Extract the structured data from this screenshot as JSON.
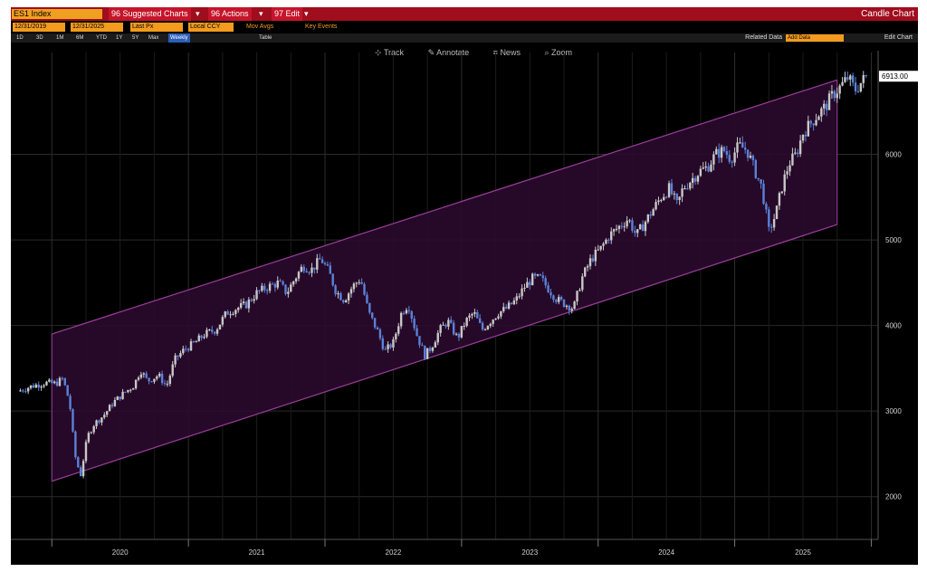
{
  "header": {
    "ticker": "ES1 Index",
    "menu_suggested": "96 Suggested Charts",
    "menu_actions": "96 Actions",
    "menu_edit": "97 Edit",
    "chart_type": "Candle Chart"
  },
  "toolbar": {
    "start_date": "12/31/2019",
    "end_date": "12/31/2025",
    "field": "Last Px",
    "currency": "Local CCY",
    "mov_avgs": "Mov Avgs",
    "key_events": "Key Events"
  },
  "ranges": {
    "items": [
      "1D",
      "3D",
      "1M",
      "6M",
      "YTD",
      "1Y",
      "5Y",
      "Max"
    ],
    "period": "Weekly",
    "table": "Table",
    "related": "Related Data",
    "add_related": "Add Data",
    "edit_chart": "Edit Chart"
  },
  "tools": {
    "track": "Track",
    "annotate": "Annotate",
    "news": "News",
    "zoom": "Zoom"
  },
  "colors": {
    "background": "#000000",
    "title_bar": "#a00d1c",
    "accent_orange": "#f29b1d",
    "channel_fill": "#2a0a2c",
    "channel_line": "#9a3e9a",
    "candle_up": "#c8c8c8",
    "candle_down": "#5a82d8"
  },
  "chart_data": {
    "type": "candlestick",
    "y_ticks": [
      2000,
      3000,
      4000,
      5000,
      6000
    ],
    "ylim": [
      1500,
      7000
    ],
    "x_ticks": [
      "2020",
      "2021",
      "2022",
      "2023",
      "2024",
      "2025"
    ],
    "last_price_label": "6913.00",
    "last_price": 6913,
    "channel": {
      "upper_start": [
        2020.0,
        3900
      ],
      "upper_end": [
        2025.75,
        6870
      ],
      "lower_start": [
        2020.0,
        2180
      ],
      "lower_end": [
        2025.75,
        5180
      ]
    },
    "series": [
      [
        2019.75,
        3230
      ],
      [
        2019.85,
        3290
      ],
      [
        2019.95,
        3330
      ],
      [
        2020.03,
        3320
      ],
      [
        2020.08,
        3380
      ],
      [
        2020.13,
        3100
      ],
      [
        2020.17,
        2480
      ],
      [
        2020.21,
        2240
      ],
      [
        2020.26,
        2700
      ],
      [
        2020.31,
        2850
      ],
      [
        2020.38,
        2950
      ],
      [
        2020.45,
        3100
      ],
      [
        2020.52,
        3200
      ],
      [
        2020.6,
        3300
      ],
      [
        2020.65,
        3480
      ],
      [
        2020.7,
        3350
      ],
      [
        2020.78,
        3420
      ],
      [
        2020.84,
        3290
      ],
      [
        2020.9,
        3600
      ],
      [
        2020.97,
        3720
      ],
      [
        2021.05,
        3800
      ],
      [
        2021.12,
        3900
      ],
      [
        2021.2,
        3950
      ],
      [
        2021.28,
        4150
      ],
      [
        2021.35,
        4200
      ],
      [
        2021.42,
        4240
      ],
      [
        2021.5,
        4380
      ],
      [
        2021.58,
        4450
      ],
      [
        2021.66,
        4500
      ],
      [
        2021.72,
        4380
      ],
      [
        2021.78,
        4550
      ],
      [
        2021.84,
        4700
      ],
      [
        2021.9,
        4650
      ],
      [
        2021.97,
        4780
      ],
      [
        2022.03,
        4620
      ],
      [
        2022.08,
        4400
      ],
      [
        2022.14,
        4300
      ],
      [
        2022.2,
        4450
      ],
      [
        2022.26,
        4550
      ],
      [
        2022.32,
        4150
      ],
      [
        2022.38,
        3950
      ],
      [
        2022.44,
        3700
      ],
      [
        2022.5,
        3800
      ],
      [
        2022.56,
        4150
      ],
      [
        2022.61,
        4250
      ],
      [
        2022.67,
        3900
      ],
      [
        2022.73,
        3650
      ],
      [
        2022.78,
        3750
      ],
      [
        2022.84,
        3950
      ],
      [
        2022.9,
        4050
      ],
      [
        2022.97,
        3850
      ],
      [
        2023.03,
        4050
      ],
      [
        2023.09,
        4150
      ],
      [
        2023.15,
        3950
      ],
      [
        2023.21,
        4050
      ],
      [
        2023.27,
        4150
      ],
      [
        2023.33,
        4200
      ],
      [
        2023.4,
        4300
      ],
      [
        2023.46,
        4450
      ],
      [
        2023.52,
        4550
      ],
      [
        2023.58,
        4550
      ],
      [
        2023.64,
        4420
      ],
      [
        2023.7,
        4300
      ],
      [
        2023.76,
        4250
      ],
      [
        2023.82,
        4200
      ],
      [
        2023.88,
        4550
      ],
      [
        2023.95,
        4780
      ],
      [
        2024.02,
        4900
      ],
      [
        2024.08,
        5050
      ],
      [
        2024.15,
        5150
      ],
      [
        2024.22,
        5250
      ],
      [
        2024.28,
        5050
      ],
      [
        2024.34,
        5200
      ],
      [
        2024.4,
        5350
      ],
      [
        2024.46,
        5500
      ],
      [
        2024.52,
        5600
      ],
      [
        2024.58,
        5400
      ],
      [
        2024.62,
        5600
      ],
      [
        2024.68,
        5700
      ],
      [
        2024.74,
        5800
      ],
      [
        2024.8,
        5850
      ],
      [
        2024.86,
        6000
      ],
      [
        2024.92,
        6050
      ],
      [
        2024.97,
        5950
      ],
      [
        2025.03,
        6100
      ],
      [
        2025.09,
        6050
      ],
      [
        2025.15,
        5800
      ],
      [
        2025.2,
        5600
      ],
      [
        2025.25,
        5100
      ],
      [
        2025.3,
        5300
      ],
      [
        2025.35,
        5650
      ],
      [
        2025.4,
        5900
      ],
      [
        2025.45,
        6000
      ],
      [
        2025.5,
        6250
      ],
      [
        2025.55,
        6350
      ],
      [
        2025.6,
        6450
      ],
      [
        2025.66,
        6550
      ],
      [
        2025.72,
        6700
      ],
      [
        2025.78,
        6800
      ],
      [
        2025.83,
        6900
      ],
      [
        2025.88,
        6750
      ],
      [
        2025.93,
        6850
      ],
      [
        2025.97,
        6913
      ]
    ]
  }
}
